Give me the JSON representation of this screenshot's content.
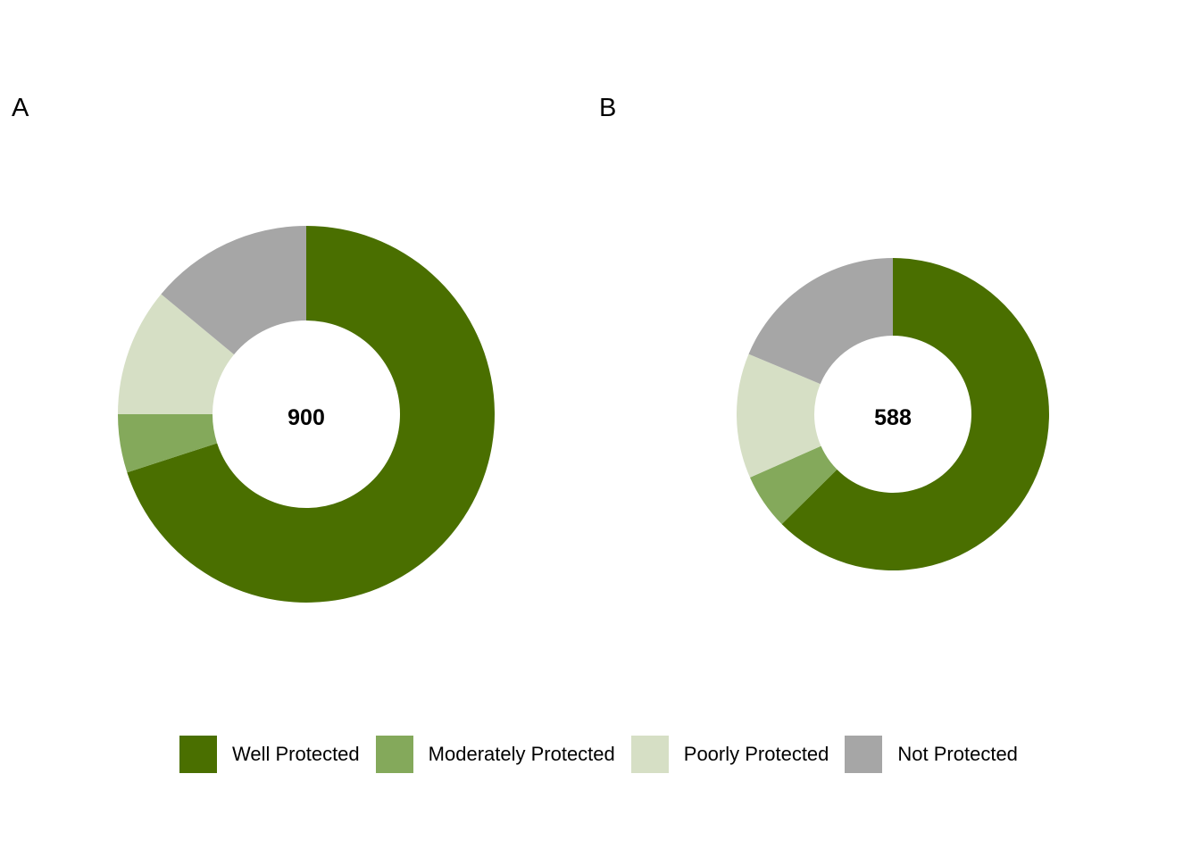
{
  "chart_data": [
    {
      "type": "pie",
      "panel_label": "A",
      "center_label": "900",
      "donut": true,
      "categories": [
        "Well Protected",
        "Moderately Protected",
        "Poorly Protected",
        "Not Protected"
      ],
      "values": [
        630,
        45,
        99,
        126
      ]
    },
    {
      "type": "pie",
      "panel_label": "B",
      "center_label": "588",
      "donut": true,
      "categories": [
        "Well Protected",
        "Moderately Protected",
        "Poorly Protected",
        "Not Protected"
      ],
      "values": [
        368,
        34,
        76,
        110
      ]
    }
  ],
  "legend": {
    "position": "bottom",
    "items": [
      {
        "label": "Well Protected",
        "color": "#4a6f00"
      },
      {
        "label": "Moderately Protected",
        "color": "#84a95b"
      },
      {
        "label": "Poorly Protected",
        "color": "#d6dfc5"
      },
      {
        "label": "Not Protected",
        "color": "#a6a6a6"
      }
    ]
  }
}
